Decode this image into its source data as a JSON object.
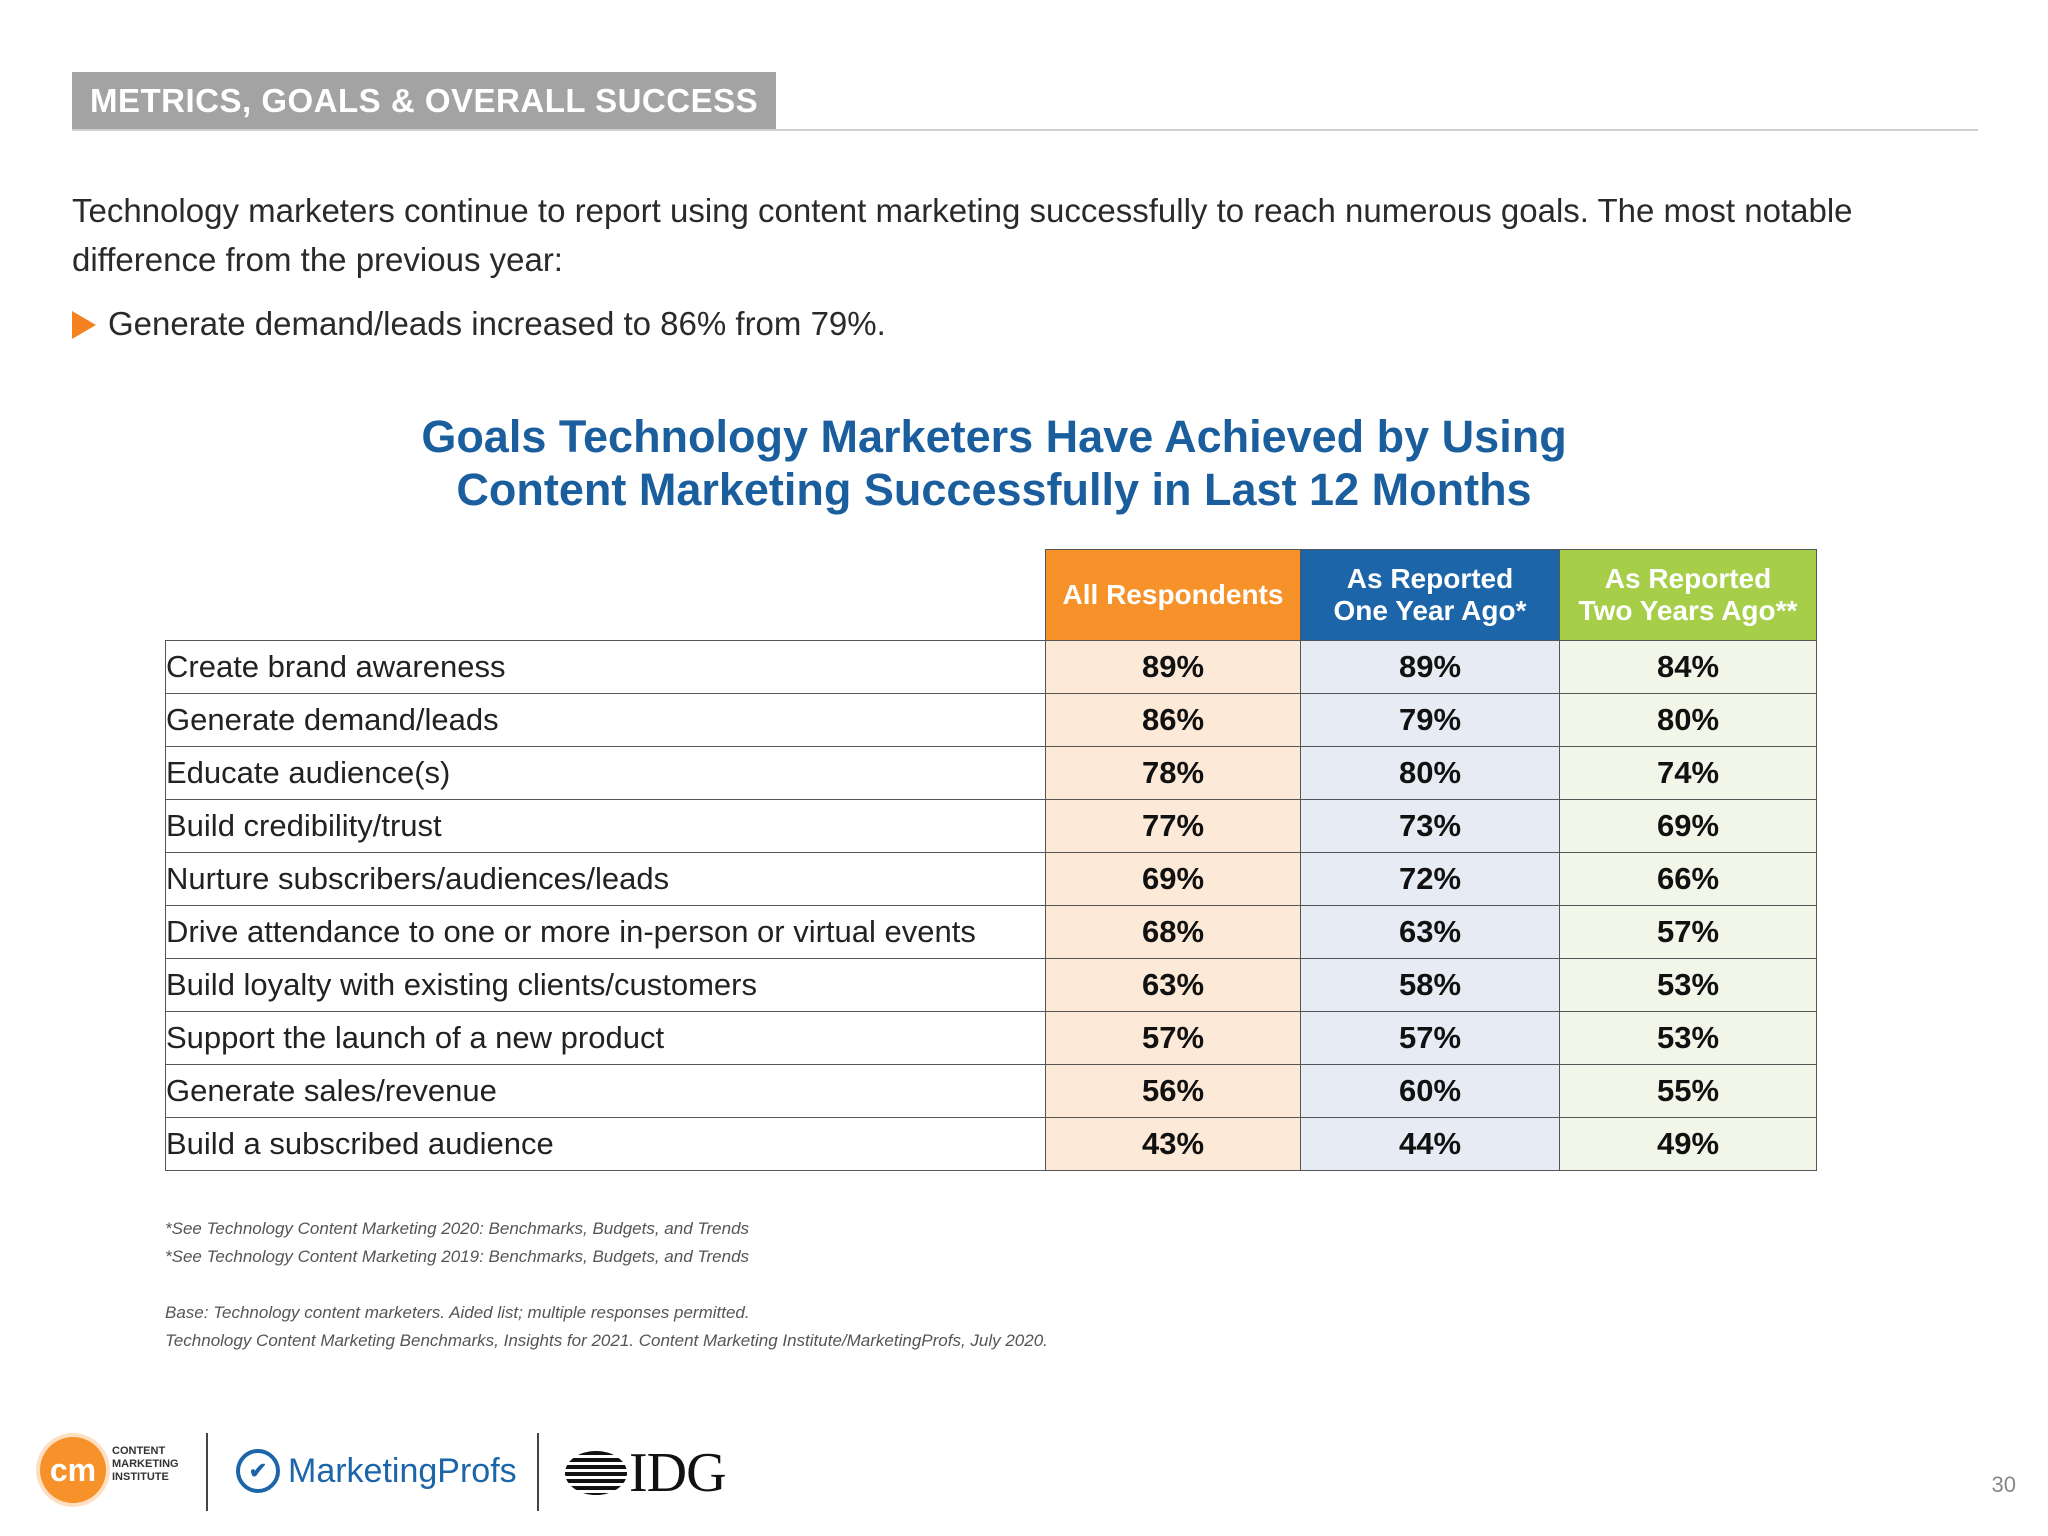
{
  "section_header": "METRICS, GOALS & OVERALL SUCCESS",
  "intro": "Technology marketers continue to report using content marketing successfully to reach numerous goals. The most notable difference from the previous year:",
  "bullet": "Generate demand/leads increased to 86% from 79%.",
  "chart": {
    "title_line1": "Goals Technology Marketers Have Achieved by Using",
    "title_line2": "Content Marketing Successfully in Last 12 Months"
  },
  "table": {
    "columns": [
      {
        "label": "All Respondents",
        "color": "#f7912a"
      },
      {
        "label_line1": "As Reported",
        "label_line2": "One Year Ago*",
        "color": "#1c65a8"
      },
      {
        "label_line1": "As Reported",
        "label_line2": "Two Years Ago**",
        "color": "#a6ce49"
      }
    ],
    "rows": [
      {
        "label": "Create brand awareness",
        "v1": "89%",
        "v2": "89%",
        "v3": "84%"
      },
      {
        "label": "Generate demand/leads",
        "v1": "86%",
        "v2": "79%",
        "v3": "80%"
      },
      {
        "label": "Educate audience(s)",
        "v1": "78%",
        "v2": "80%",
        "v3": "74%"
      },
      {
        "label": "Build credibility/trust",
        "v1": "77%",
        "v2": "73%",
        "v3": "69%"
      },
      {
        "label": "Nurture subscribers/audiences/leads",
        "v1": "69%",
        "v2": "72%",
        "v3": "66%"
      },
      {
        "label": "Drive attendance to one or more in-person or virtual events",
        "v1": "68%",
        "v2": "63%",
        "v3": "57%"
      },
      {
        "label": "Build loyalty with existing clients/customers",
        "v1": "63%",
        "v2": "58%",
        "v3": "53%"
      },
      {
        "label": "Support the launch of a new product",
        "v1": "57%",
        "v2": "57%",
        "v3": "53%"
      },
      {
        "label": "Generate sales/revenue",
        "v1": "56%",
        "v2": "60%",
        "v3": "55%"
      },
      {
        "label": "Build a subscribed audience",
        "v1": "43%",
        "v2": "44%",
        "v3": "49%"
      }
    ]
  },
  "footnotes": {
    "note1": "*See Technology Content Marketing 2020: Benchmarks, Budgets, and Trends",
    "note2": "*See Technology Content Marketing 2019: Benchmarks, Budgets, and Trends",
    "base": "Base: Technology content marketers. Aided list; multiple responses permitted.",
    "source": "Technology Content Marketing Benchmarks, Insights for 2021. Content Marketing Institute/MarketingProfs, July 2020."
  },
  "logos": {
    "cmi_mark": "cm",
    "cmi_line1": "CONTENT",
    "cmi_line2": "MARKETING",
    "cmi_line3": "INSTITUTE",
    "marketingprofs": "MarketingProfs",
    "idg": "IDG"
  },
  "page_number": "30"
}
